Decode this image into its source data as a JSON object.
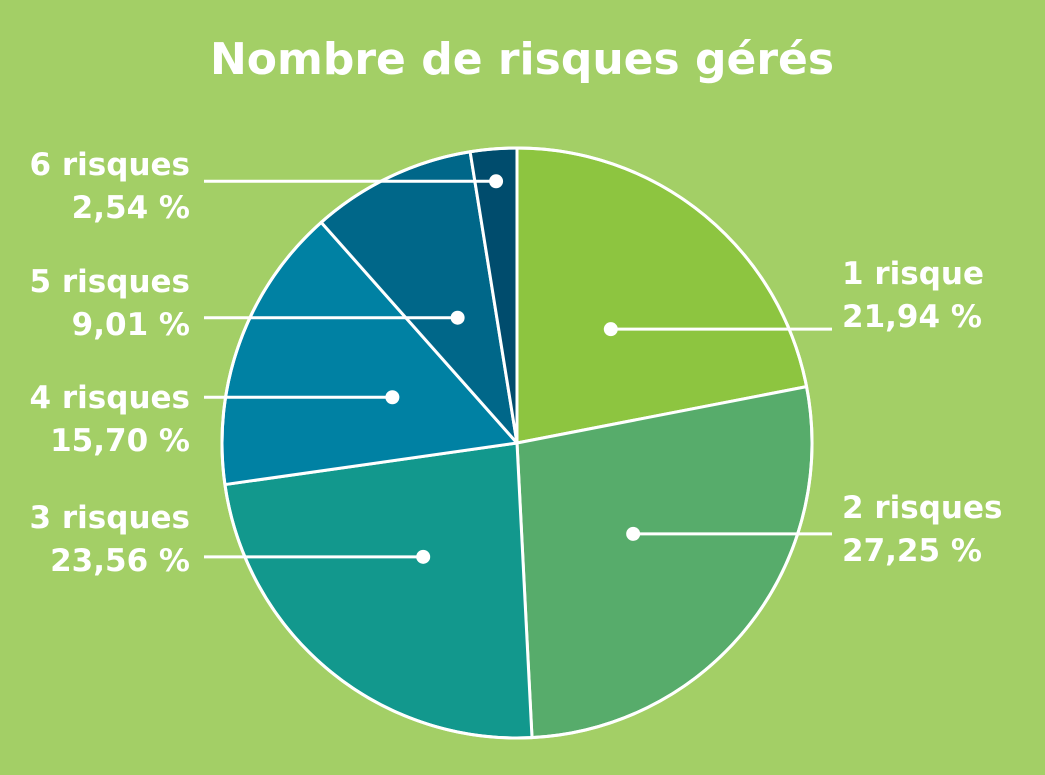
{
  "page": {
    "background": "#a3cf66"
  },
  "chart_data": {
    "type": "pie",
    "title": "Nombre de risques gérés",
    "slices": [
      {
        "label": "1 risque",
        "value_text": "21,94 %",
        "value": 21.94,
        "color": "#8dc540"
      },
      {
        "label": "2 risques",
        "value_text": "27,25 %",
        "value": 27.25,
        "color": "#57ac6b"
      },
      {
        "label": "3 risques",
        "value_text": "23,56 %",
        "value": 23.56,
        "color": "#12988d"
      },
      {
        "label": "4 risques",
        "value_text": "15,70 %",
        "value": 15.7,
        "color": "#0081a3"
      },
      {
        "label": "5 risques",
        "value_text": "9,01 %",
        "value": 9.01,
        "color": "#006789"
      },
      {
        "label": "6 risques",
        "value_text": "2,54 %",
        "value": 2.54,
        "color": "#004c6d"
      }
    ],
    "start_angle": "12 o'clock",
    "direction": "clockwise",
    "slice_border_color": "#ffffff",
    "legend": "none",
    "leader_color": "#ffffff"
  }
}
